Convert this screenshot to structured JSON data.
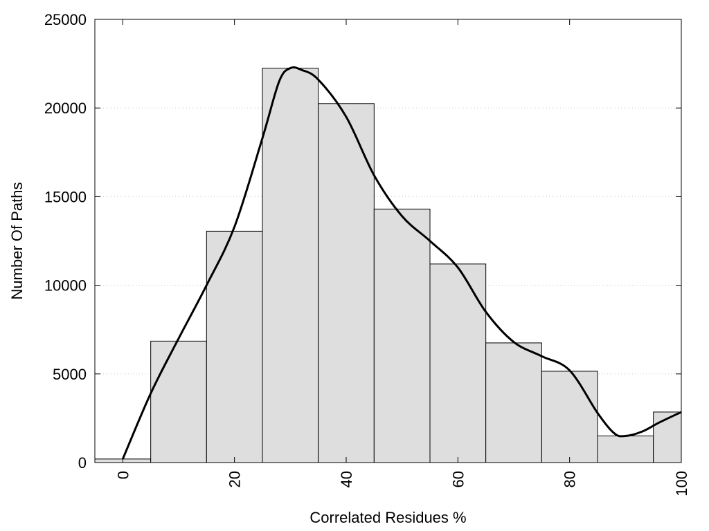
{
  "chart_data": {
    "type": "bar",
    "title": "",
    "xlabel": "Correlated Residues %",
    "ylabel": "Number Of Paths",
    "xlim": [
      -5,
      100
    ],
    "ylim": [
      0,
      25000
    ],
    "x_ticks": [
      0,
      20,
      40,
      60,
      80,
      100
    ],
    "y_ticks": [
      0,
      5000,
      10000,
      15000,
      20000,
      25000
    ],
    "grid": "horizontal dotted",
    "bar_color": "#dedede",
    "bin_width": 10,
    "bins": [
      {
        "center": 0,
        "value": 200
      },
      {
        "center": 10,
        "value": 6850
      },
      {
        "center": 20,
        "value": 13050
      },
      {
        "center": 30,
        "value": 22250
      },
      {
        "center": 40,
        "value": 20250
      },
      {
        "center": 50,
        "value": 14300
      },
      {
        "center": 60,
        "value": 11200
      },
      {
        "center": 70,
        "value": 6750
      },
      {
        "center": 80,
        "value": 5150
      },
      {
        "center": 90,
        "value": 1500
      },
      {
        "center": 100,
        "value": 2850
      }
    ],
    "curve": {
      "x": [
        0,
        5,
        10,
        15,
        20,
        25,
        28,
        30,
        32,
        35,
        40,
        45,
        50,
        55,
        60,
        65,
        70,
        75,
        80,
        85,
        88,
        90,
        93,
        96,
        100
      ],
      "y": [
        200,
        3900,
        7000,
        10000,
        13300,
        18300,
        21500,
        22250,
        22150,
        21600,
        19500,
        16200,
        13900,
        12500,
        11000,
        8500,
        6800,
        6000,
        5200,
        2800,
        1650,
        1500,
        1750,
        2250,
        2850
      ]
    }
  }
}
